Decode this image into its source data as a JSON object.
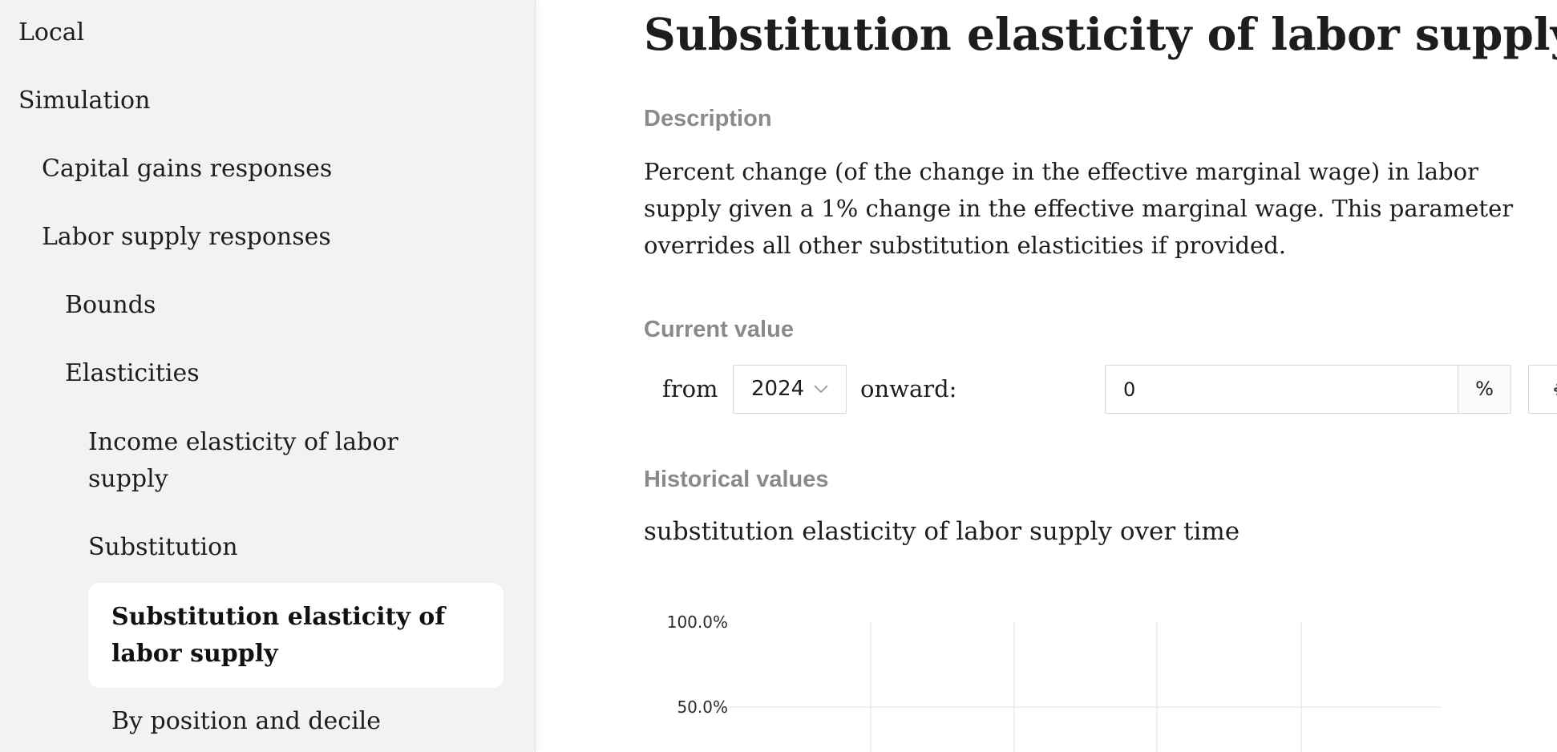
{
  "sidebar": {
    "items": [
      {
        "label": "Local"
      },
      {
        "label": "Simulation"
      },
      {
        "label": "Capital gains responses"
      },
      {
        "label": "Labor supply responses"
      },
      {
        "label": "Bounds"
      },
      {
        "label": "Elasticities"
      },
      {
        "label": "Income elasticity of labor supply"
      },
      {
        "label": "Substitution"
      },
      {
        "label": "Substitution elasticity of labor supply",
        "selected": true
      },
      {
        "label": "By position and decile"
      }
    ]
  },
  "main": {
    "title": "Substitution elasticity of labor supply",
    "description_label": "Description",
    "description": "Percent change (of the change in the effective marginal wage) in labor supply given a 1% change in the effective marginal wage. This parameter overrides all other substitution elasticities if provided.",
    "current_value": {
      "label": "Current value",
      "from_text": "from",
      "year": "2024",
      "onward_text": "onward:",
      "value": "0",
      "unit": "%",
      "settings_icon": "gear-icon"
    },
    "historical": {
      "label": "Historical values",
      "chart_title": "substitution elasticity of labor supply over time"
    }
  },
  "chart_data": {
    "type": "line",
    "title": "substitution elasticity of labor supply over time",
    "y_ticks": [
      "100.0%",
      "50.0%"
    ],
    "gridlines": true,
    "series": []
  },
  "colors": {
    "sidebar_bg": "#f2f2f2",
    "selected_bg": "#ffffff",
    "muted_label": "#8a8a8a",
    "gridline": "#ebebeb"
  }
}
